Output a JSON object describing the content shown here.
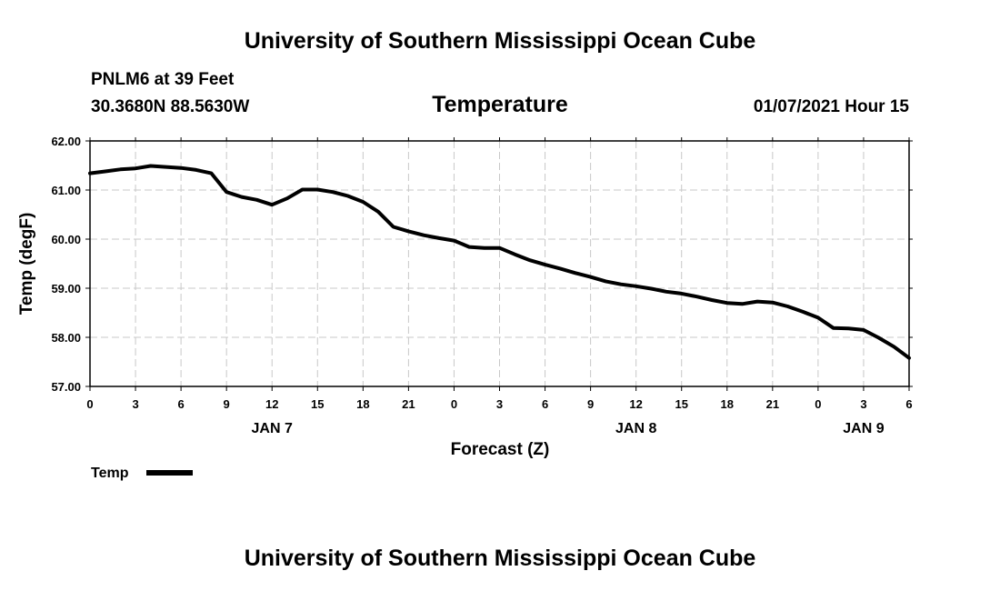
{
  "header": {
    "title": "University of Southern Mississippi Ocean Cube",
    "station": "PNLM6 at 39 Feet",
    "coords": "30.3680N 88.5630W",
    "chart_title": "Temperature",
    "datetime": "01/07/2021 Hour 15"
  },
  "footer": {
    "title": "University of Southern Mississippi Ocean Cube"
  },
  "colors": {
    "line": "#000000",
    "grid": "#c8c8c8",
    "frame": "#000000"
  },
  "chart_data": {
    "type": "line",
    "title": "Temperature",
    "xlabel": "Forecast (Z)",
    "ylabel": "Temp (degF)",
    "xlim": [
      0,
      54
    ],
    "ylim": [
      57.0,
      62.0
    ],
    "yticks": [
      "57.00",
      "58.00",
      "59.00",
      "60.00",
      "61.00",
      "62.00"
    ],
    "ytick_values": [
      57,
      58,
      59,
      60,
      61,
      62
    ],
    "xtick_hours": [
      0,
      3,
      6,
      9,
      12,
      15,
      18,
      21,
      24,
      27,
      30,
      33,
      36,
      39,
      42,
      45,
      48,
      51,
      54
    ],
    "xtick_labels": [
      "0",
      "3",
      "6",
      "9",
      "12",
      "15",
      "18",
      "21",
      "0",
      "3",
      "6",
      "9",
      "12",
      "15",
      "18",
      "21",
      "0",
      "3",
      "6"
    ],
    "day_labels": [
      {
        "hour": 12,
        "label": "JAN 7"
      },
      {
        "hour": 36,
        "label": "JAN 8"
      },
      {
        "hour": 51,
        "label": "JAN 9"
      }
    ],
    "grid": true,
    "legend": {
      "position": "bottom-left",
      "label": "Temp"
    },
    "series": [
      {
        "name": "Temp",
        "x": [
          0,
          1,
          2,
          3,
          4,
          5,
          6,
          7,
          8,
          9,
          10,
          11,
          12,
          13,
          14,
          15,
          16,
          17,
          18,
          19,
          20,
          21,
          22,
          23,
          24,
          25,
          26,
          27,
          28,
          29,
          30,
          31,
          32,
          33,
          34,
          35,
          36,
          37,
          38,
          39,
          40,
          41,
          42,
          43,
          44,
          45,
          46,
          47,
          48,
          49,
          50,
          51,
          52,
          53,
          54
        ],
        "values": [
          61.34,
          61.38,
          61.42,
          61.44,
          61.49,
          61.47,
          61.45,
          61.41,
          61.34,
          60.96,
          60.86,
          60.8,
          60.7,
          60.83,
          61.01,
          61.01,
          60.96,
          60.88,
          60.76,
          60.56,
          60.25,
          60.16,
          60.08,
          60.02,
          59.97,
          59.84,
          59.82,
          59.82,
          59.69,
          59.57,
          59.48,
          59.4,
          59.31,
          59.23,
          59.14,
          59.08,
          59.04,
          58.99,
          58.93,
          58.89,
          58.83,
          58.76,
          58.7,
          58.68,
          58.73,
          58.71,
          58.63,
          58.52,
          58.4,
          58.19,
          58.18,
          58.15,
          57.99,
          57.81,
          57.58
        ]
      }
    ]
  }
}
